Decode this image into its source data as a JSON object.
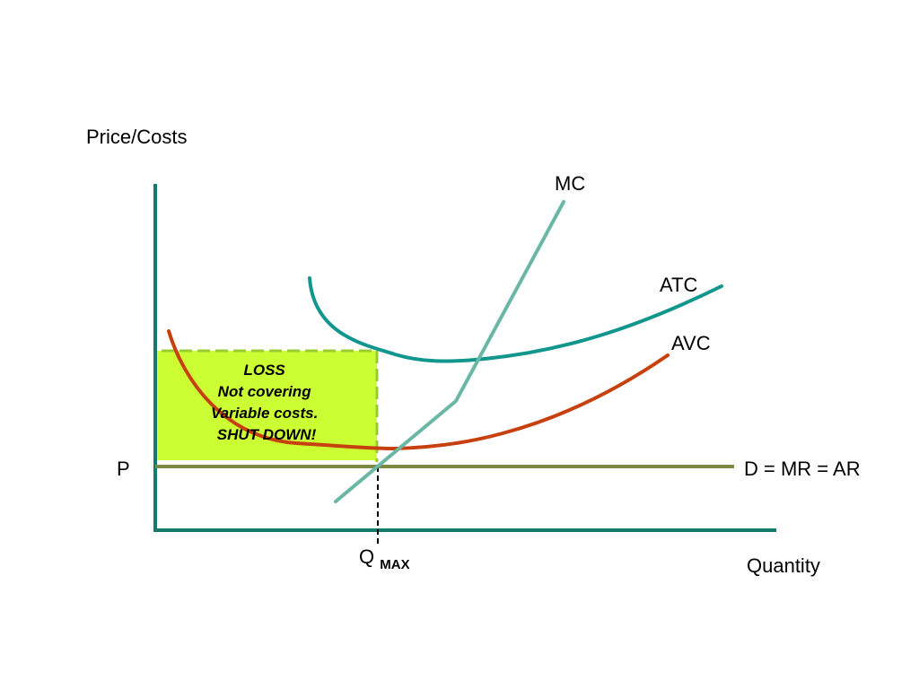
{
  "labels": {
    "y_axis": "Price/Costs",
    "x_axis": "Quantity",
    "mc": "MC",
    "atc": "ATC",
    "avc": "AVC",
    "price": "P",
    "demand": "D = MR = AR",
    "qmax_main": "Q",
    "qmax_sub": "MAX"
  },
  "loss_box": {
    "lines": [
      "LOSS",
      "Not covering",
      "Variable costs.",
      "SHUT DOWN!"
    ]
  },
  "colors": {
    "axis": "#147a6c",
    "mc": "#6ab7a5",
    "atc": "#11968d",
    "avc": "#c7410e",
    "price_line": "#7c8a44",
    "loss_fill": "#ccff33",
    "loss_border": "#99cc33",
    "qmax_line": "#000000"
  }
}
